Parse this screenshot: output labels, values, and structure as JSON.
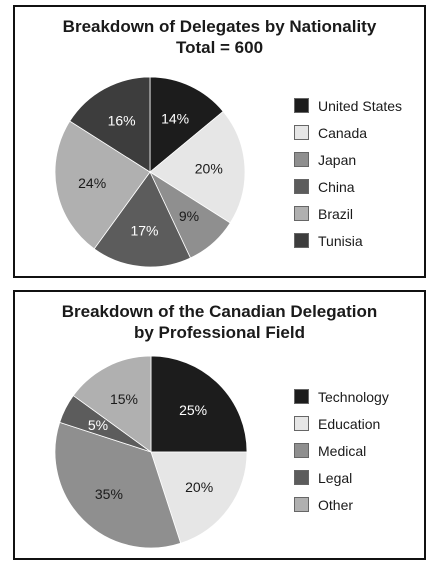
{
  "chart_data": [
    {
      "type": "pie",
      "title": "Breakdown of Delegates by Nationality",
      "subtitle": "Total = 600",
      "categories": [
        "United States",
        "Canada",
        "Japan",
        "China",
        "Brazil",
        "Tunisia"
      ],
      "values": [
        14,
        20,
        9,
        17,
        24,
        16
      ],
      "value_labels": [
        "14%",
        "20%",
        "9%",
        "17%",
        "24%",
        "16%"
      ],
      "colors": [
        "#1c1c1c",
        "#e6e6e6",
        "#8f8f8f",
        "#5c5c5c",
        "#b0b0b0",
        "#3d3d3d"
      ],
      "label_colors": [
        "#ffffff",
        "#1a1a1a",
        "#1a1a1a",
        "#ffffff",
        "#1a1a1a",
        "#ffffff"
      ],
      "legend_position": "right"
    },
    {
      "type": "pie",
      "title": "Breakdown of the Canadian Delegation",
      "subtitle": "by Professional Field",
      "categories": [
        "Technology",
        "Education",
        "Medical",
        "Legal",
        "Other"
      ],
      "values": [
        25,
        20,
        35,
        5,
        15
      ],
      "value_labels": [
        "25%",
        "20%",
        "35%",
        "5%",
        "15%"
      ],
      "colors": [
        "#1c1c1c",
        "#e6e6e6",
        "#8f8f8f",
        "#5c5c5c",
        "#b0b0b0"
      ],
      "label_colors": [
        "#ffffff",
        "#1a1a1a",
        "#1a1a1a",
        "#ffffff",
        "#1a1a1a"
      ],
      "legend_position": "right"
    }
  ]
}
